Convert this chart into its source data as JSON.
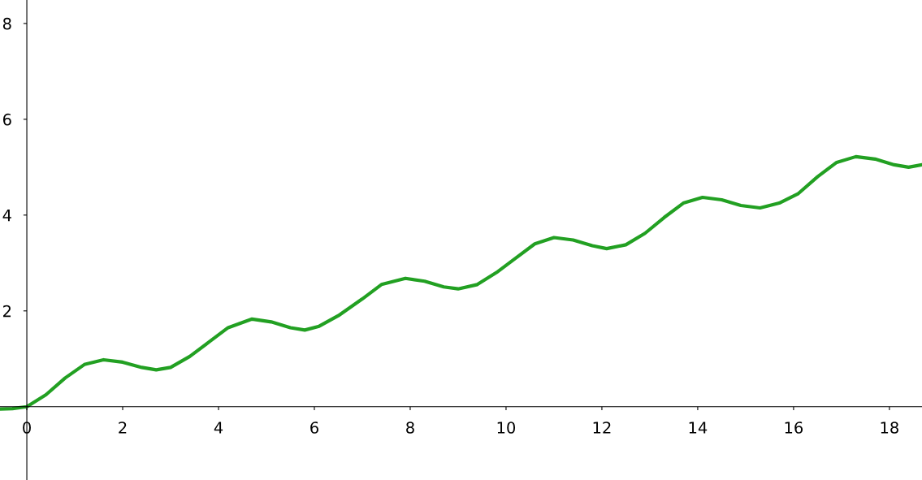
{
  "chart_data": {
    "type": "line",
    "xlim": [
      -0.56,
      18.68
    ],
    "ylim": [
      -1.53,
      8.49
    ],
    "xticks": [
      0,
      2,
      4,
      6,
      8,
      10,
      12,
      14,
      16,
      18
    ],
    "yticks": [
      2,
      4,
      6,
      8
    ],
    "marker": "none",
    "line_style": "solid",
    "series": [
      {
        "color": "#22a022",
        "x": [
          -0.56,
          -0.3,
          0,
          0.4,
          0.8,
          1.2,
          1.6,
          2.0,
          2.4,
          2.7,
          3.0,
          3.4,
          3.8,
          4.2,
          4.7,
          5.1,
          5.5,
          5.8,
          6.1,
          6.5,
          7.0,
          7.4,
          7.9,
          8.3,
          8.7,
          9.0,
          9.4,
          9.8,
          10.2,
          10.6,
          11.0,
          11.4,
          11.8,
          12.1,
          12.5,
          12.9,
          13.3,
          13.7,
          14.1,
          14.5,
          14.9,
          15.3,
          15.7,
          16.1,
          16.5,
          16.9,
          17.3,
          17.7,
          18.1,
          18.4,
          18.68
        ],
        "values": [
          -0.05,
          -0.04,
          0,
          0.25,
          0.6,
          0.88,
          0.98,
          0.93,
          0.82,
          0.77,
          0.82,
          1.05,
          1.35,
          1.65,
          1.83,
          1.77,
          1.65,
          1.6,
          1.68,
          1.9,
          2.25,
          2.55,
          2.68,
          2.62,
          2.5,
          2.46,
          2.55,
          2.8,
          3.1,
          3.4,
          3.53,
          3.48,
          3.36,
          3.3,
          3.38,
          3.62,
          3.95,
          4.25,
          4.37,
          4.32,
          4.2,
          4.15,
          4.25,
          4.45,
          4.8,
          5.1,
          5.22,
          5.17,
          5.05,
          5.0,
          5.05
        ]
      }
    ]
  }
}
